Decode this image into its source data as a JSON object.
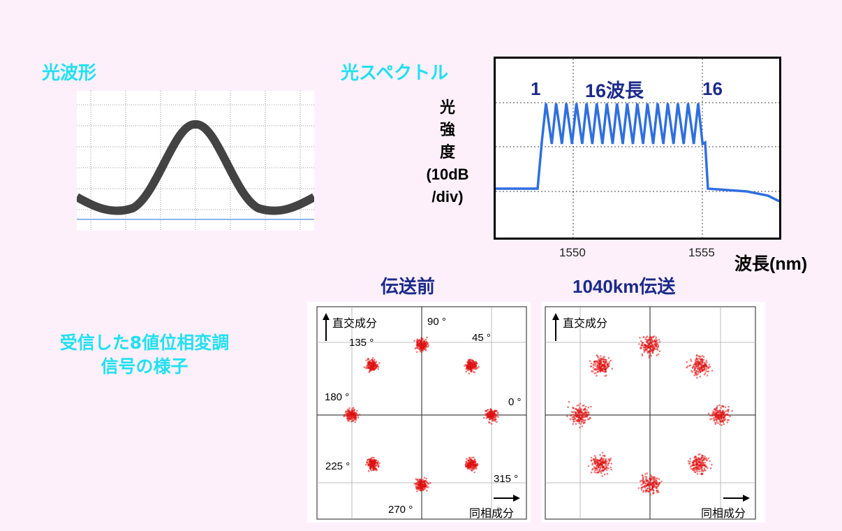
{
  "waveform": {
    "title": "光波形"
  },
  "spectrum": {
    "title": "光スペクトル",
    "ylabel_lines": [
      "光",
      "強",
      "度",
      "(10dB",
      "/div)"
    ],
    "label_left": "1",
    "label_center": "16波長",
    "label_right": "16",
    "xticks": [
      "1550",
      "1555"
    ],
    "xlabel": "波長(nm)",
    "channel_count": 16
  },
  "constellation": {
    "side_label_line1": "受信した8値位相変調",
    "side_label_line2": "信号の様子",
    "before": {
      "title": "伝送前",
      "yaxis": "直交成分",
      "xaxis": "同相成分",
      "angle_labels": [
        "90 °",
        "45 °",
        "135 °",
        "180 °",
        "0 °",
        "225 °",
        "315 °",
        "270 °"
      ]
    },
    "after": {
      "title": "1040km伝送",
      "yaxis": "直交成分",
      "xaxis": "同相成分"
    }
  },
  "colors": {
    "background": "#fdf0fb",
    "cyan_title": "#22e0f0",
    "navy": "#1c2a8a",
    "spectrum_line": "#2f6fe0",
    "constellation_dot": "#e01010"
  }
}
